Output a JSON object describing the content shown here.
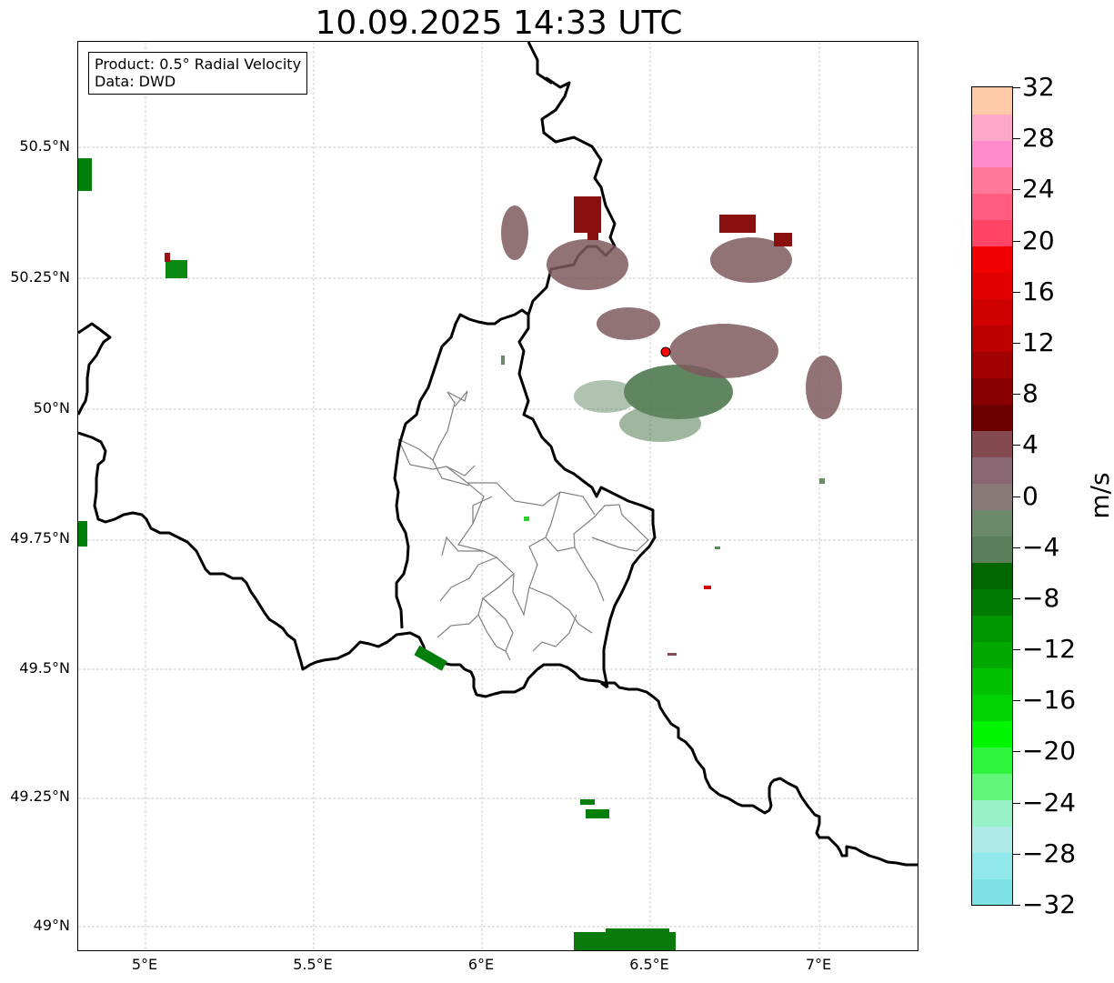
{
  "title": "10.09.2025 14:33 UTC",
  "info": {
    "product": "Product: 0.5° Radial Velocity",
    "data": "Data: DWD"
  },
  "axes": {
    "lat_labels": [
      "50.5°N",
      "50.25°N",
      "50°N",
      "49.75°N",
      "49.5°N",
      "49.25°N",
      "49°N"
    ],
    "lon_labels": [
      "5°E",
      "5.5°E",
      "6°E",
      "6.5°E",
      "7°E"
    ]
  },
  "colorbar": {
    "unit": "m/s",
    "tick_labels": [
      "32",
      "28",
      "24",
      "20",
      "16",
      "12",
      "8",
      "4",
      "0",
      "−4",
      "−8",
      "−12",
      "−16",
      "−20",
      "−24",
      "−28",
      "−32"
    ],
    "colors_low_to_high": [
      "#7fe3e6",
      "#90e8ea",
      "#aeeaea",
      "#98f4c8",
      "#63f57a",
      "#2ef53c",
      "#00f500",
      "#00d200",
      "#00c000",
      "#00a800",
      "#009600",
      "#007a00",
      "#006600",
      "#5a7f5a",
      "#6a8a6a",
      "#8a7a7a",
      "#886672",
      "#844a50",
      "#6c0000",
      "#880000",
      "#a00000",
      "#bc0000",
      "#d00000",
      "#e00000",
      "#f00000",
      "#ff4466",
      "#ff5c80",
      "#ff7899",
      "#ff8acb",
      "#ffa8c8",
      "#ffcaa8"
    ]
  },
  "radar_site": {
    "lon": 6.548,
    "lat": 50.11,
    "color": "#ff0000"
  }
}
